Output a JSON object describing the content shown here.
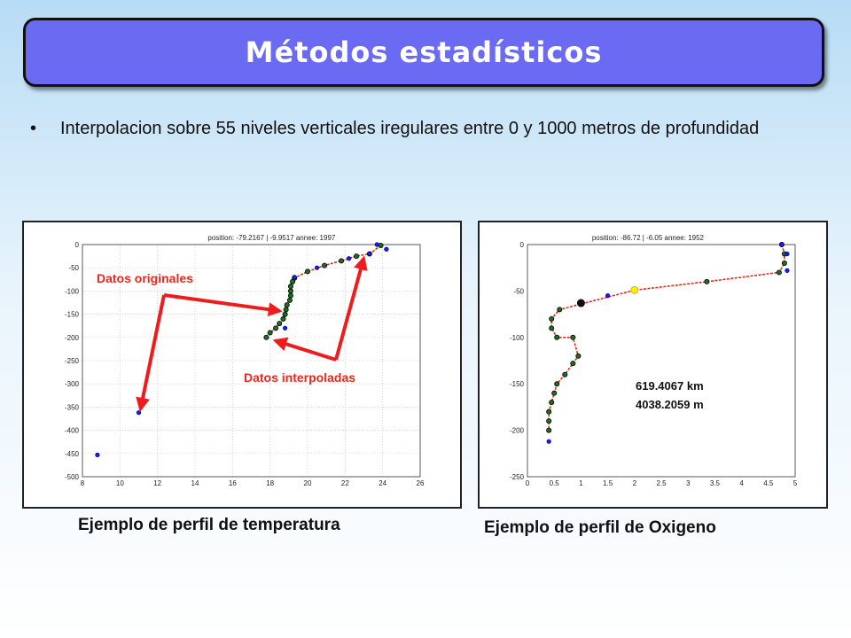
{
  "slide": {
    "title": "Métodos estadísticos",
    "bullet_marker": "•",
    "bullet_text": "Interpolacion sobre 55 niveles verticales iregulares entre 0 y 1000 metros de profundidad"
  },
  "captions": {
    "temperature": "Ejemplo de perfil de temperatura",
    "oxygen": "Ejemplo de perfil de Oxigeno"
  },
  "colors": {
    "title_bg": "#6a6af2",
    "line": "#e8281e",
    "original_point": "#1a1aff",
    "interpolated_point": "#1f6f1f",
    "highlight_point": "#ffee00",
    "arrow": "#ee1c1c"
  },
  "chart_data": [
    {
      "type": "scatter",
      "title": "position: -79.2167 | -9.9517  annee: 1997",
      "xlim": [
        8,
        26
      ],
      "ylim": [
        -500,
        0
      ],
      "xticks": [
        8,
        10,
        12,
        14,
        16,
        18,
        20,
        22,
        24,
        26
      ],
      "yticks": [
        0,
        -50,
        -100,
        -150,
        -200,
        -250,
        -300,
        -350,
        -400,
        -450,
        -500
      ],
      "grid": true,
      "annotations": [
        "Datos originales",
        "Datos interpoladas"
      ],
      "series": [
        {
          "role": "original",
          "points": [
            [
              23.7,
              0
            ],
            [
              24.2,
              -10
            ],
            [
              23.3,
              -20
            ],
            [
              22.2,
              -30
            ],
            [
              20.5,
              -50
            ],
            [
              19.3,
              -70
            ],
            [
              18.8,
              -180
            ],
            [
              11.0,
              -362
            ],
            [
              8.8,
              -453
            ]
          ]
        },
        {
          "role": "interpolated",
          "points": [
            [
              23.9,
              -2
            ],
            [
              23.3,
              -20
            ],
            [
              22.6,
              -25
            ],
            [
              21.8,
              -35
            ],
            [
              20.9,
              -45
            ],
            [
              20.0,
              -58
            ],
            [
              19.3,
              -72
            ],
            [
              19.2,
              -80
            ],
            [
              19.1,
              -90
            ],
            [
              19.1,
              -100
            ],
            [
              19.1,
              -110
            ],
            [
              19.05,
              -120
            ],
            [
              18.9,
              -130
            ],
            [
              18.85,
              -140
            ],
            [
              18.8,
              -150
            ],
            [
              18.7,
              -160
            ],
            [
              18.5,
              -170
            ],
            [
              18.3,
              -180
            ],
            [
              18.0,
              -190
            ],
            [
              17.8,
              -200
            ]
          ]
        }
      ]
    },
    {
      "type": "scatter",
      "title": "position: -86.72 | -6.05   annee: 1952",
      "xlim": [
        0,
        5
      ],
      "ylim": [
        -250,
        0
      ],
      "xticks": [
        0,
        0.5,
        1,
        1.5,
        2,
        2.5,
        3,
        3.5,
        4,
        4.5,
        5
      ],
      "yticks": [
        0,
        -50,
        -100,
        -150,
        -200,
        -250
      ],
      "grid": false,
      "annotations": [
        "619.4067 km",
        "4038.2059 m"
      ],
      "series": [
        {
          "role": "original",
          "points": [
            [
              4.75,
              0
            ],
            [
              4.85,
              -10
            ],
            [
              4.85,
              -28
            ],
            [
              1.5,
              -55
            ],
            [
              0.4,
              -212
            ]
          ]
        },
        {
          "role": "interpolated",
          "points": [
            [
              4.75,
              0
            ],
            [
              4.8,
              -10
            ],
            [
              4.8,
              -20
            ],
            [
              4.7,
              -30
            ],
            [
              3.35,
              -40
            ],
            [
              2.0,
              -49
            ],
            [
              0.6,
              -70
            ],
            [
              0.45,
              -80
            ],
            [
              0.45,
              -90
            ],
            [
              0.55,
              -100
            ],
            [
              0.85,
              -100
            ],
            [
              0.95,
              -120
            ],
            [
              0.85,
              -128
            ],
            [
              0.7,
              -140
            ],
            [
              0.55,
              -150
            ],
            [
              0.5,
              -160
            ],
            [
              0.45,
              -170
            ],
            [
              0.4,
              -180
            ],
            [
              0.4,
              -190
            ],
            [
              0.4,
              -200
            ]
          ]
        },
        {
          "role": "highlight",
          "points": [
            [
              2.0,
              -49
            ]
          ]
        },
        {
          "role": "large-marker",
          "points": [
            [
              1.0,
              -63
            ]
          ]
        }
      ]
    }
  ]
}
